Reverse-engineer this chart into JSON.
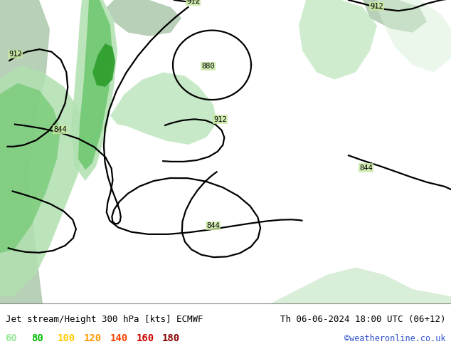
{
  "title_left": "Jet stream/Height 300 hPa [kts] ECMWF",
  "title_right": "Th 06-06-2024 18:00 UTC (06+12)",
  "watermark": "©weatheronline.co.uk",
  "legend_values": [
    60,
    80,
    100,
    120,
    140,
    160,
    180
  ],
  "legend_colors": [
    "#98e898",
    "#00bb00",
    "#ffcc00",
    "#ff9900",
    "#ff4400",
    "#cc0000",
    "#880000"
  ],
  "bg_color": "#ffffff",
  "land_color": "#c8e8a0",
  "ocean_color": "#b8d0b8",
  "jet_light": "#b0e0b0",
  "jet_mid": "#70c870",
  "jet_dark": "#30a030",
  "contour_color": "#000000",
  "font_family": "monospace",
  "title_fontsize": 9,
  "legend_fontsize": 10
}
